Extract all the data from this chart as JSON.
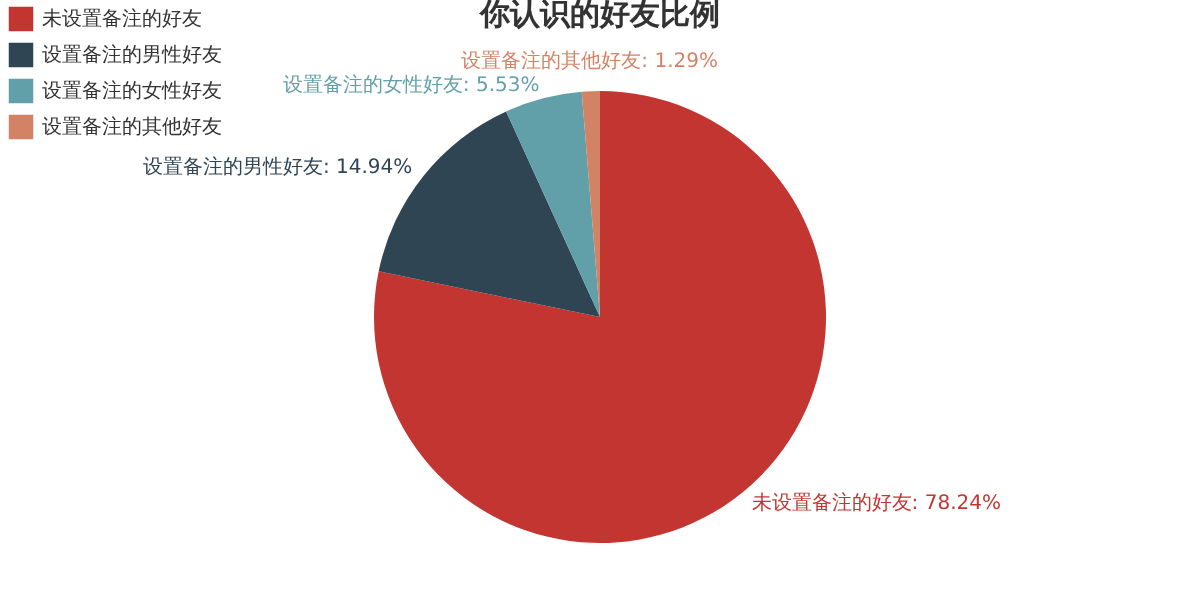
{
  "chart_data": {
    "type": "pie",
    "title": "你认识的好友比例",
    "categories": [
      "未设置备注的好友",
      "设置备注的男性好友",
      "设置备注的女性好友",
      "设置备注的其他好友"
    ],
    "values": [
      78.24,
      14.94,
      5.53,
      1.29
    ],
    "colors": [
      "#c23531",
      "#2f4554",
      "#61a0a8",
      "#d48265"
    ],
    "value_labels": [
      "未设置备注的好友: 78.24%",
      "设置备注的男性好友: 14.94%",
      "设置备注的女性好友: 5.53%",
      "设置备注的其他好友: 1.29%"
    ],
    "legend": "top left"
  }
}
